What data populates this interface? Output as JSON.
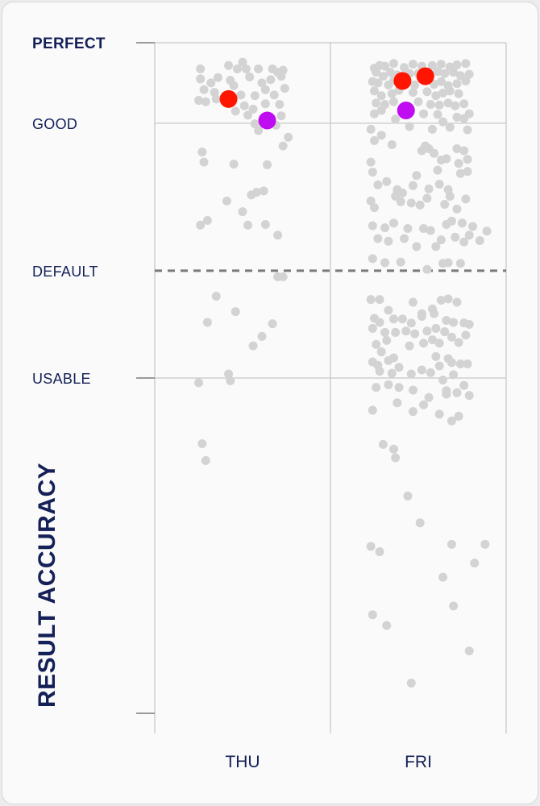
{
  "chart_data": {
    "type": "scatter",
    "title": "",
    "ylabel": "RESULT ACCURACY",
    "xlabel": "",
    "categories": [
      "THU",
      "FRI"
    ],
    "ylim": [
      0,
      100
    ],
    "levels": [
      {
        "label": "PERFECT",
        "value": 100,
        "bold": true
      },
      {
        "label": "GOOD",
        "value": 88
      },
      {
        "label": "DEFAULT",
        "value": 66,
        "dashed": true
      },
      {
        "label": "USABLE",
        "value": 50
      }
    ],
    "grid": true,
    "highlight_colors": {
      "red": "#ff1500",
      "purple": "#bf0cf0"
    },
    "point_color": "#d3d3d3",
    "series": [
      {
        "category": "THU",
        "highlights": [
          {
            "color": "red",
            "x": 0.42,
            "y": 91.6
          },
          {
            "color": "purple",
            "x": 0.64,
            "y": 88.4
          }
        ],
        "points": [
          [
            0.26,
            96.1
          ],
          [
            0.42,
            96.6
          ],
          [
            0.47,
            96.1
          ],
          [
            0.5,
            97.1
          ],
          [
            0.52,
            96.1
          ],
          [
            0.59,
            96.1
          ],
          [
            0.67,
            96.1
          ],
          [
            0.7,
            95.6
          ],
          [
            0.73,
            95.9
          ],
          [
            0.26,
            94.6
          ],
          [
            0.32,
            94.0
          ],
          [
            0.36,
            94.8
          ],
          [
            0.43,
            94.4
          ],
          [
            0.45,
            93.6
          ],
          [
            0.54,
            94.9
          ],
          [
            0.61,
            94.0
          ],
          [
            0.66,
            94.5
          ],
          [
            0.72,
            95.0
          ],
          [
            0.28,
            93.0
          ],
          [
            0.34,
            92.6
          ],
          [
            0.4,
            91.8
          ],
          [
            0.49,
            92.2
          ],
          [
            0.57,
            92.1
          ],
          [
            0.63,
            93.0
          ],
          [
            0.68,
            92.2
          ],
          [
            0.74,
            93.2
          ],
          [
            0.25,
            91.4
          ],
          [
            0.29,
            91.2
          ],
          [
            0.35,
            91.6
          ],
          [
            0.51,
            90.6
          ],
          [
            0.56,
            90.1
          ],
          [
            0.63,
            90.9
          ],
          [
            0.71,
            90.8
          ],
          [
            0.46,
            89.8
          ],
          [
            0.53,
            89.2
          ],
          [
            0.57,
            87.9
          ],
          [
            0.69,
            87.7
          ],
          [
            0.72,
            89.1
          ],
          [
            0.59,
            86.9
          ],
          [
            0.76,
            85.9
          ],
          [
            0.27,
            83.7
          ],
          [
            0.28,
            82.2
          ],
          [
            0.45,
            81.9
          ],
          [
            0.73,
            84.6
          ],
          [
            0.64,
            81.8
          ],
          [
            0.58,
            77.7
          ],
          [
            0.62,
            77.9
          ],
          [
            0.55,
            77.3
          ],
          [
            0.41,
            76.4
          ],
          [
            0.5,
            74.8
          ],
          [
            0.3,
            73.5
          ],
          [
            0.26,
            72.8
          ],
          [
            0.53,
            72.8
          ],
          [
            0.63,
            72.9
          ],
          [
            0.7,
            71.3
          ],
          [
            0.7,
            65.1
          ],
          [
            0.73,
            65.1
          ],
          [
            0.35,
            62.2
          ],
          [
            0.46,
            59.9
          ],
          [
            0.3,
            58.3
          ],
          [
            0.67,
            58.1
          ],
          [
            0.61,
            56.2
          ],
          [
            0.56,
            54.8
          ],
          [
            0.42,
            50.6
          ],
          [
            0.43,
            49.6
          ],
          [
            0.25,
            49.3
          ],
          [
            0.27,
            40.2
          ],
          [
            0.29,
            37.7
          ]
        ]
      },
      {
        "category": "FRI",
        "highlights": [
          {
            "color": "red",
            "x": 0.41,
            "y": 94.3
          },
          {
            "color": "red",
            "x": 0.54,
            "y": 95.0
          },
          {
            "color": "purple",
            "x": 0.43,
            "y": 89.9
          }
        ],
        "points": [
          [
            0.25,
            96.2
          ],
          [
            0.28,
            96.6
          ],
          [
            0.31,
            96.5
          ],
          [
            0.36,
            96.9
          ],
          [
            0.42,
            96.3
          ],
          [
            0.47,
            96.8
          ],
          [
            0.52,
            96.5
          ],
          [
            0.58,
            96.6
          ],
          [
            0.63,
            96.8
          ],
          [
            0.68,
            96.4
          ],
          [
            0.72,
            96.7
          ],
          [
            0.77,
            96.9
          ],
          [
            0.26,
            95.6
          ],
          [
            0.3,
            95.0
          ],
          [
            0.34,
            95.6
          ],
          [
            0.38,
            95.2
          ],
          [
            0.45,
            95.4
          ],
          [
            0.5,
            95.4
          ],
          [
            0.57,
            95.3
          ],
          [
            0.61,
            95.7
          ],
          [
            0.65,
            95.4
          ],
          [
            0.7,
            95.6
          ],
          [
            0.74,
            95.1
          ],
          [
            0.79,
            95.3
          ],
          [
            0.24,
            94.2
          ],
          [
            0.27,
            94.0
          ],
          [
            0.33,
            93.7
          ],
          [
            0.36,
            94.4
          ],
          [
            0.48,
            93.7
          ],
          [
            0.59,
            93.8
          ],
          [
            0.63,
            94.2
          ],
          [
            0.67,
            93.6
          ],
          [
            0.72,
            93.9
          ],
          [
            0.77,
            94.3
          ],
          [
            0.25,
            92.8
          ],
          [
            0.29,
            92.1
          ],
          [
            0.35,
            92.4
          ],
          [
            0.39,
            92.9
          ],
          [
            0.47,
            92.6
          ],
          [
            0.55,
            92.7
          ],
          [
            0.6,
            92.1
          ],
          [
            0.64,
            92.5
          ],
          [
            0.68,
            92.8
          ],
          [
            0.73,
            92.4
          ],
          [
            0.26,
            91.0
          ],
          [
            0.31,
            90.8
          ],
          [
            0.36,
            91.2
          ],
          [
            0.5,
            91.2
          ],
          [
            0.57,
            90.8
          ],
          [
            0.62,
            90.7
          ],
          [
            0.67,
            91.0
          ],
          [
            0.71,
            90.6
          ],
          [
            0.76,
            90.9
          ],
          [
            0.25,
            89.4
          ],
          [
            0.29,
            89.9
          ],
          [
            0.37,
            88.6
          ],
          [
            0.53,
            89.4
          ],
          [
            0.61,
            89.3
          ],
          [
            0.64,
            88.2
          ],
          [
            0.72,
            88.9
          ],
          [
            0.76,
            88.7
          ],
          [
            0.79,
            89.4
          ],
          [
            0.23,
            87.1
          ],
          [
            0.29,
            86.2
          ],
          [
            0.45,
            87.5
          ],
          [
            0.58,
            87.1
          ],
          [
            0.68,
            87.4
          ],
          [
            0.78,
            87.0
          ],
          [
            0.25,
            85.4
          ],
          [
            0.35,
            84.8
          ],
          [
            0.54,
            84.6
          ],
          [
            0.56,
            84.2
          ],
          [
            0.59,
            83.5
          ],
          [
            0.52,
            83.9
          ],
          [
            0.72,
            84.2
          ],
          [
            0.76,
            83.9
          ],
          [
            0.63,
            82.5
          ],
          [
            0.66,
            82.7
          ],
          [
            0.73,
            82.0
          ],
          [
            0.78,
            82.6
          ],
          [
            0.23,
            82.2
          ],
          [
            0.24,
            80.7
          ],
          [
            0.49,
            80.2
          ],
          [
            0.61,
            81.0
          ],
          [
            0.74,
            80.5
          ],
          [
            0.78,
            80.8
          ],
          [
            0.27,
            78.8
          ],
          [
            0.32,
            79.3
          ],
          [
            0.38,
            78.1
          ],
          [
            0.47,
            78.7
          ],
          [
            0.56,
            78.2
          ],
          [
            0.62,
            78.9
          ],
          [
            0.67,
            78.1
          ],
          [
            0.41,
            77.6
          ],
          [
            0.68,
            77.1
          ],
          [
            0.23,
            76.4
          ],
          [
            0.25,
            75.4
          ],
          [
            0.37,
            77.1
          ],
          [
            0.4,
            76.3
          ],
          [
            0.46,
            76.1
          ],
          [
            0.51,
            75.8
          ],
          [
            0.55,
            76.8
          ],
          [
            0.65,
            75.9
          ],
          [
            0.77,
            76.7
          ],
          [
            0.72,
            75.2
          ],
          [
            0.24,
            72.7
          ],
          [
            0.31,
            72.4
          ],
          [
            0.36,
            73.1
          ],
          [
            0.44,
            72.3
          ],
          [
            0.53,
            72.3
          ],
          [
            0.57,
            72.0
          ],
          [
            0.66,
            72.9
          ],
          [
            0.69,
            73.4
          ],
          [
            0.75,
            73.1
          ],
          [
            0.81,
            72.6
          ],
          [
            0.27,
            70.8
          ],
          [
            0.33,
            70.4
          ],
          [
            0.42,
            70.8
          ],
          [
            0.49,
            69.6
          ],
          [
            0.6,
            69.6
          ],
          [
            0.63,
            70.6
          ],
          [
            0.71,
            71.0
          ],
          [
            0.76,
            70.3
          ],
          [
            0.79,
            71.3
          ],
          [
            0.85,
            70.5
          ],
          [
            0.89,
            71.9
          ],
          [
            0.24,
            67.8
          ],
          [
            0.31,
            67.2
          ],
          [
            0.4,
            67.3
          ],
          [
            0.55,
            66.2
          ],
          [
            0.64,
            67.1
          ],
          [
            0.67,
            67.2
          ],
          [
            0.74,
            67.1
          ],
          [
            0.23,
            61.7
          ],
          [
            0.28,
            61.7
          ],
          [
            0.33,
            60.1
          ],
          [
            0.47,
            61.3
          ],
          [
            0.52,
            59.6
          ],
          [
            0.58,
            60.3
          ],
          [
            0.63,
            61.6
          ],
          [
            0.67,
            61.8
          ],
          [
            0.72,
            61.3
          ],
          [
            0.25,
            58.9
          ],
          [
            0.28,
            58.3
          ],
          [
            0.36,
            58.8
          ],
          [
            0.41,
            58.8
          ],
          [
            0.46,
            58.2
          ],
          [
            0.52,
            59.2
          ],
          [
            0.59,
            59.6
          ],
          [
            0.66,
            58.6
          ],
          [
            0.7,
            58.3
          ],
          [
            0.76,
            58.2
          ],
          [
            0.79,
            58.0
          ],
          [
            0.24,
            57.4
          ],
          [
            0.31,
            56.8
          ],
          [
            0.37,
            56.8
          ],
          [
            0.43,
            57.0
          ],
          [
            0.48,
            56.6
          ],
          [
            0.55,
            57.0
          ],
          [
            0.6,
            57.4
          ],
          [
            0.65,
            56.9
          ],
          [
            0.69,
            56.1
          ],
          [
            0.77,
            56.4
          ],
          [
            0.26,
            55.0
          ],
          [
            0.32,
            55.6
          ],
          [
            0.45,
            54.8
          ],
          [
            0.53,
            55.2
          ],
          [
            0.58,
            55.7
          ],
          [
            0.62,
            55.2
          ],
          [
            0.73,
            55.3
          ],
          [
            0.29,
            53.9
          ],
          [
            0.36,
            53.0
          ],
          [
            0.6,
            53.2
          ],
          [
            0.67,
            52.9
          ],
          [
            0.24,
            52.4
          ],
          [
            0.27,
            51.9
          ],
          [
            0.33,
            52.6
          ],
          [
            0.39,
            51.6
          ],
          [
            0.46,
            50.6
          ],
          [
            0.62,
            51.8
          ],
          [
            0.69,
            52.3
          ],
          [
            0.74,
            52.1
          ],
          [
            0.78,
            52.1
          ],
          [
            0.28,
            51.0
          ],
          [
            0.35,
            50.7
          ],
          [
            0.52,
            51.2
          ],
          [
            0.57,
            50.8
          ],
          [
            0.64,
            49.7
          ],
          [
            0.7,
            50.5
          ],
          [
            0.26,
            48.6
          ],
          [
            0.33,
            49.0
          ],
          [
            0.39,
            48.6
          ],
          [
            0.47,
            48.2
          ],
          [
            0.56,
            47.1
          ],
          [
            0.66,
            48.1
          ],
          [
            0.72,
            47.8
          ],
          [
            0.76,
            48.9
          ],
          [
            0.79,
            47.4
          ],
          [
            0.24,
            45.2
          ],
          [
            0.38,
            46.3
          ],
          [
            0.47,
            45.0
          ],
          [
            0.62,
            44.6
          ],
          [
            0.73,
            44.3
          ],
          [
            0.69,
            43.6
          ],
          [
            0.66,
            47.6
          ],
          [
            0.53,
            46.0
          ],
          [
            0.3,
            40.1
          ],
          [
            0.36,
            39.4
          ],
          [
            0.37,
            38.1
          ],
          [
            0.44,
            32.4
          ],
          [
            0.51,
            28.4
          ],
          [
            0.69,
            25.2
          ],
          [
            0.23,
            24.9
          ],
          [
            0.28,
            24.1
          ],
          [
            0.24,
            14.7
          ],
          [
            0.32,
            13.1
          ],
          [
            0.46,
            4.5
          ],
          [
            0.64,
            20.3
          ],
          [
            0.7,
            16.0
          ],
          [
            0.79,
            9.3
          ],
          [
            0.88,
            25.2
          ],
          [
            0.82,
            22.4
          ]
        ]
      }
    ]
  }
}
